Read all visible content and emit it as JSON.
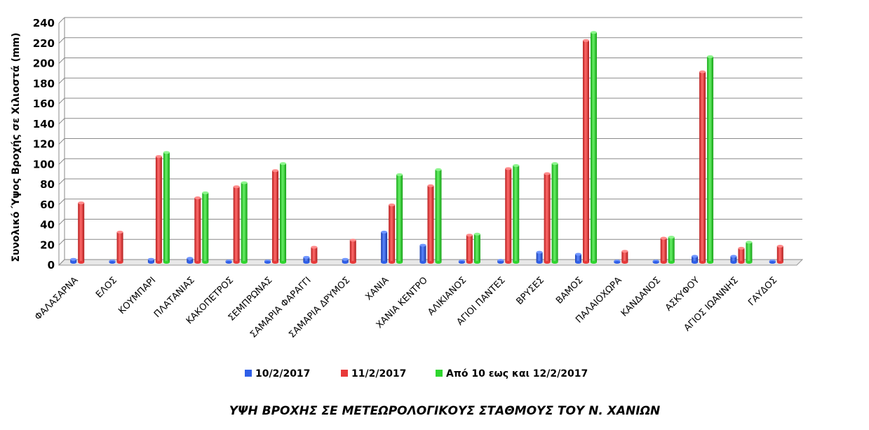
{
  "chart_data": {
    "type": "bar",
    "title": "ΥΨΗ ΒΡΟΧΗΣ ΣΕ ΜΕΤΕΩΡΟΛΟΓΙΚΟΥΣ ΣΤΑΘΜΟΥΣ ΤΟΥ Ν. ΧΑΝΙΩΝ",
    "ylabel": "Συνολικό Ύψος Βροχής σε Χιλιοστά (mm)",
    "xlabel": "",
    "ylim": [
      0,
      240
    ],
    "yticks": [
      0,
      20,
      40,
      60,
      80,
      100,
      120,
      140,
      160,
      180,
      200,
      220,
      240
    ],
    "grid": true,
    "legend_position": "bottom",
    "categories": [
      "ΦΑΛΑΣΑΡΝΑ",
      "ΕΛΟΣ",
      "ΚΟΥΜΠΑΡΙ",
      "ΠΛΑΤΑΝΙΑΣ",
      "ΚΑΚΟΠΕΤΡΟΣ",
      "ΣΕΜΠΡΩΝΑΣ",
      "ΣΑΜΑΡΙΑ ΦΑΡΑΓΓΙ",
      "ΣΑΜΑΡΙΑ ΔΡΥΜΟΣ",
      "ΧΑΝΙΑ",
      "ΧΑΝΙΑ ΚΕΝΤΡΟ",
      "ΑΛΙΚΙΑΝΟΣ",
      "ΑΓΙΟΙ ΠΑΝΤΕΣ",
      "ΒΡΥΣΕΣ",
      "ΒΑΜΟΣ",
      "ΠΑΛΑΙΟΧΩΡΑ",
      "ΚΑΝΔΑΝΟΣ",
      "ΑΣΚΥΦΟΥ",
      "ΑΓΙΟΣ ΙΩΑΝΝΗΣ",
      "ΓΑΥΔΟΣ"
    ],
    "series": [
      {
        "name": "10/2/2017",
        "color": "#2f5fe8",
        "values": [
          3,
          0.4,
          3,
          4,
          1,
          0.5,
          5,
          3,
          30,
          17,
          1,
          2,
          10,
          8,
          1,
          1,
          6,
          6,
          0.5
        ]
      },
      {
        "name": "11/2/2017",
        "color": "#e83a3a",
        "values": [
          59,
          30,
          105,
          64,
          75,
          91,
          15,
          22,
          57,
          76,
          27,
          93,
          88,
          220,
          11,
          24,
          189,
          14,
          16
        ]
      },
      {
        "name": "Από 10 εως και 12/2/2017",
        "color": "#2fd62f",
        "values": [
          null,
          null,
          109,
          69,
          79,
          98,
          null,
          null,
          87,
          92,
          28,
          96,
          98,
          228,
          null,
          25,
          204,
          20,
          null
        ]
      }
    ]
  }
}
